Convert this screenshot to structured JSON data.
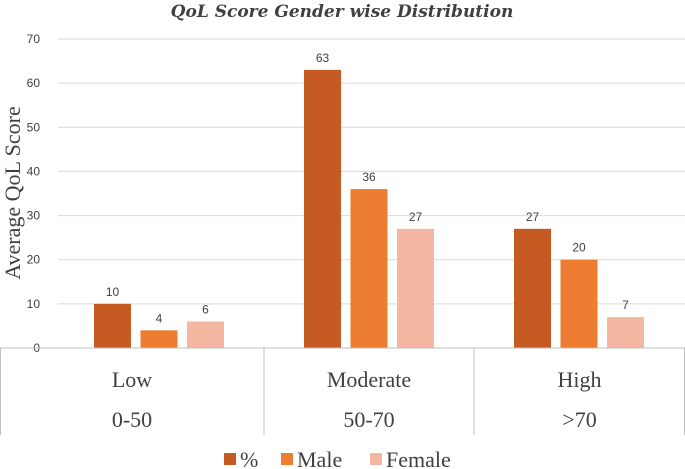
{
  "chart_data": {
    "type": "bar",
    "title": "QoL Score Gender wise Distribution",
    "ylabel": "Average QoL Score",
    "xlabel": "",
    "ylim": [
      0,
      70
    ],
    "yticks": [
      0,
      10,
      20,
      30,
      40,
      50,
      60,
      70
    ],
    "grid": true,
    "legend_position": "bottom",
    "categories": [
      "Low",
      "Moderate",
      "High"
    ],
    "subcategories": [
      "0-50",
      "50-70",
      ">70"
    ],
    "series": [
      {
        "name": "%",
        "values": [
          10,
          63,
          27
        ],
        "color": "#c55a22"
      },
      {
        "name": "Male",
        "values": [
          4,
          36,
          20
        ],
        "color": "#ed7d31"
      },
      {
        "name": "Female",
        "values": [
          6,
          27,
          7
        ],
        "color": "#f4b8a2"
      }
    ]
  }
}
